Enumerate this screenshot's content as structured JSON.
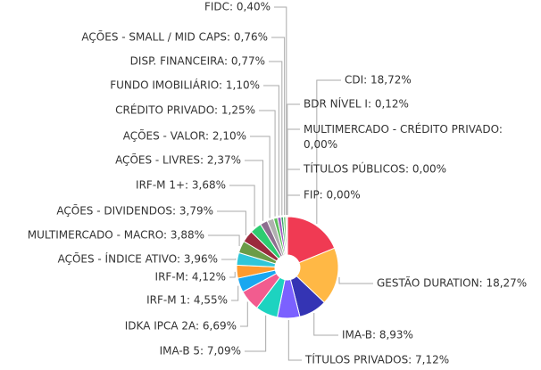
{
  "chart_data": {
    "type": "pie",
    "values": [
      18.72,
      18.27,
      8.93,
      7.12,
      7.09,
      6.69,
      4.55,
      4.12,
      3.96,
      3.88,
      3.79,
      3.68,
      2.37,
      2.1,
      1.25,
      1.1,
      0.77,
      0.76,
      0.4,
      0.12,
      0,
      0,
      0
    ],
    "value_labels": [
      "CDI: 18,72%",
      "GESTÃO DURATION: 18,27%",
      "IMA-B: 8,93%",
      "TÍTULOS PRIVADOS: 7,12%",
      "IMA-B 5: 7,09%",
      "IDKA IPCA 2A: 6,69%",
      "IRF-M 1: 4,55%",
      "IRF-M: 4,12%",
      "AÇÕES - ÍNDICE ATIVO: 3,96%",
      "MULTIMERCADO - MACRO: 3,88%",
      "AÇÕES - DIVIDENDOS: 3,79%",
      "IRF-M 1+: 3,68%",
      "AÇÕES - LIVRES: 2,37%",
      "AÇÕES - VALOR: 2,10%",
      "CRÉDITO PRIVADO: 1,25%",
      "FUNDO IMOBILIÁRIO: 1,10%",
      "DISP. FINANCEIRA: 0,77%",
      "AÇÕES - SMALL / MID CAPS: 0,76%",
      "FIDC: 0,40%",
      "BDR NÍVEL I: 0,12%",
      "MULTIMERCADO - CRÉDITO PRIVADO: 0,00%",
      "TÍTULOS PÚBLICOS: 0,00%",
      "FIP: 0,00%"
    ],
    "colors": [
      "#f03a53",
      "#ffb845",
      "#3434b4",
      "#7b61ff",
      "#1dd3c0",
      "#f25c8f",
      "#1aa7f0",
      "#ff9a2e",
      "#2fc6d8",
      "#6b9c48",
      "#9b2a3d",
      "#2ecc71",
      "#8d6e8f",
      "#b0b0b0",
      "#5bc05b",
      "#a05cc0",
      "#3aa36e",
      "#79d279",
      "#aaaaaa",
      "#cccccc",
      "#cccccc",
      "#cccccc",
      "#cccccc"
    ],
    "donut": true
  }
}
